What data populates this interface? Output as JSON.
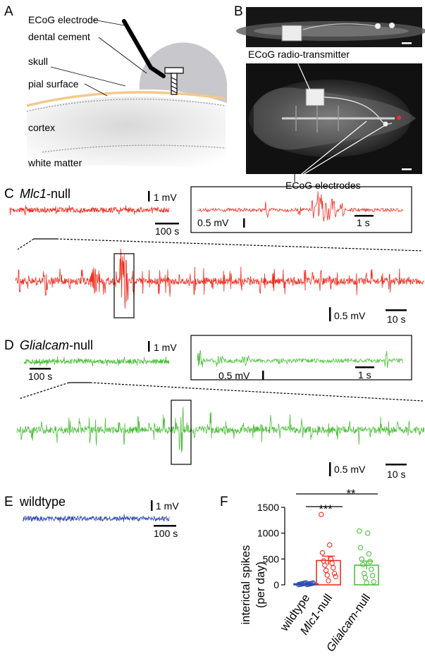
{
  "panels": {
    "A": {
      "letter": "A",
      "labels": {
        "ecog_electrode": "ECoG electrode",
        "dental_cement": "dental cement",
        "skull": "skull",
        "pial_surface": "pial surface",
        "cortex": "cortex",
        "white_matter": "white matter"
      }
    },
    "B": {
      "letter": "B",
      "transmitter_label": "ECoG radio-transmitter",
      "electrodes_label": "ECoG electrodes"
    },
    "C": {
      "letter": "C",
      "genotype_italic": "Mlc1",
      "genotype_suffix": "-null",
      "scale_1mv": "1 mV",
      "scale_100s": "100 s",
      "inset_mv": "0.5 mV",
      "inset_s": "1 s",
      "zoom_mv": "0.5 mV",
      "zoom_s": "10 s",
      "trace_color": "#ef2d1f"
    },
    "D": {
      "letter": "D",
      "genotype_italic": "Glialcam",
      "genotype_suffix": "-null",
      "scale_1mv": "1 mV",
      "scale_100s": "100 s",
      "inset_mv": "0.5 mV",
      "inset_s": "1 s",
      "zoom_mv": "0.5 mV",
      "zoom_s": "10 s",
      "trace_color": "#4cbf3a"
    },
    "E": {
      "letter": "E",
      "genotype": "wildtype",
      "scale_1mv": "1 mV",
      "scale_100s": "100 s",
      "trace_color": "#2f4bb5"
    },
    "F": {
      "letter": "F",
      "ylabel_line1": "interictal spikes",
      "ylabel_line2": "(per day)",
      "significance": [
        "***",
        "**"
      ]
    }
  },
  "chart_data": {
    "type": "bar",
    "categories": [
      "wildtype",
      "Mlc1-null",
      "Glialcam-null"
    ],
    "category_parts": [
      {
        "italic": "",
        "plain": "wildtype"
      },
      {
        "italic": "Mlc1",
        "plain": "-null"
      },
      {
        "italic": "Glialcam",
        "plain": "-null"
      }
    ],
    "values": [
      20,
      470,
      380
    ],
    "errors": [
      5,
      85,
      80
    ],
    "colors": [
      "#2f4bb5",
      "#ef2d1f",
      "#4cbf3a"
    ],
    "points": [
      [
        5,
        8,
        10,
        12,
        15,
        18,
        20,
        22,
        25,
        28,
        30,
        35,
        40
      ],
      [
        1360,
        770,
        620,
        500,
        460,
        420,
        380,
        330,
        280,
        220,
        190,
        160,
        80
      ],
      [
        1040,
        1000,
        720,
        600,
        500,
        450,
        390,
        300,
        220,
        180,
        140,
        60,
        40
      ]
    ],
    "yticks": [
      0,
      500,
      1000,
      1500
    ],
    "ylim": [
      0,
      1500
    ],
    "ylabel": "interictal spikes (per day)"
  }
}
